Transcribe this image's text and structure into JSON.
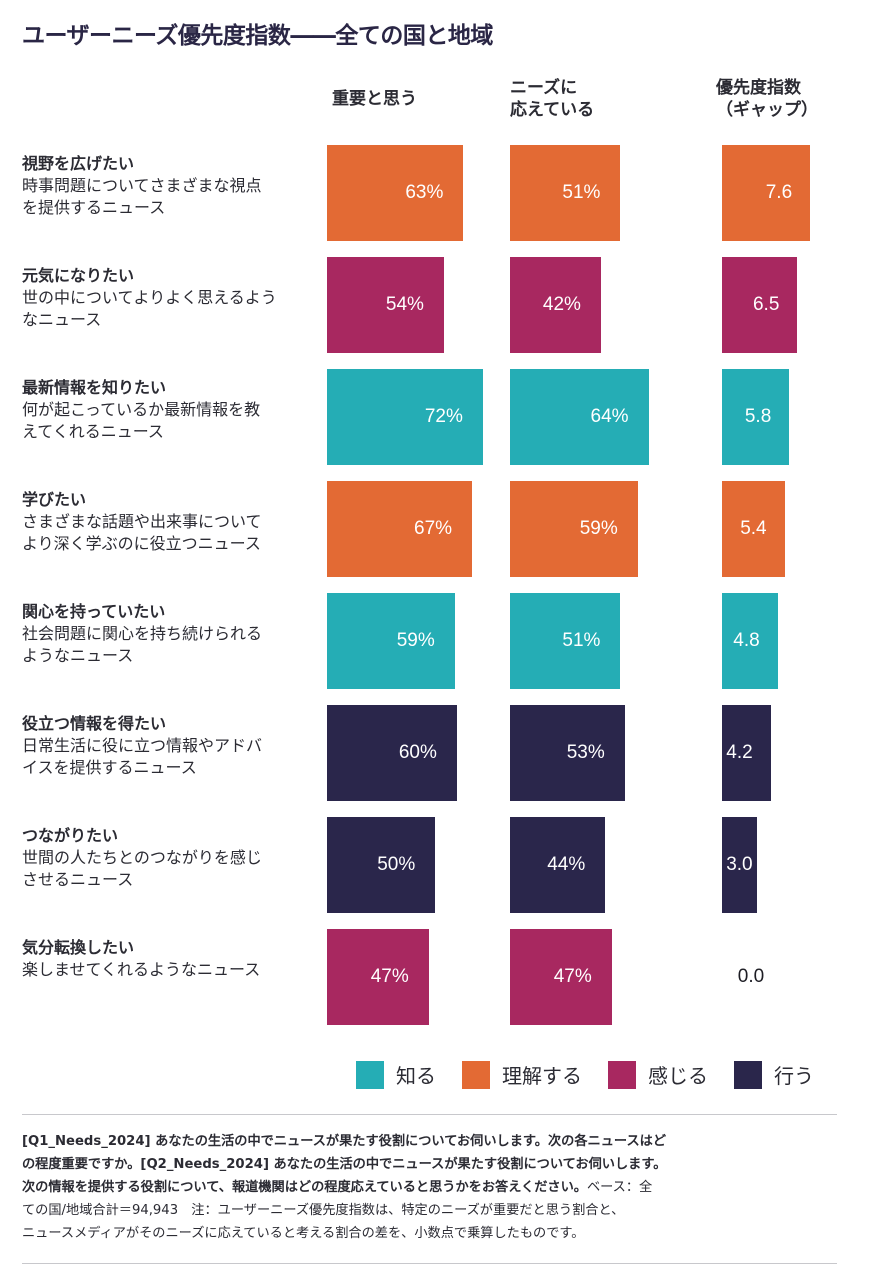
{
  "title": "ユーザーニーズ優先度指数――全ての国と地域",
  "columns": {
    "important": [
      "重要と思う"
    ],
    "met": [
      "ニーズに",
      "応えている"
    ],
    "gap": [
      "優先度指数",
      "（ギャップ）"
    ]
  },
  "colors": {
    "知る": "#25adb5",
    "理解する": "#e36a34",
    "感じる": "#a82860",
    "行う": "#2a264b"
  },
  "legend": [
    {
      "label": "知る",
      "color": "#25adb5"
    },
    {
      "label": "理解する",
      "color": "#e36a34"
    },
    {
      "label": "感じる",
      "color": "#a82860"
    },
    {
      "label": "行う",
      "color": "#2a264b"
    }
  ],
  "chart_data": {
    "type": "bar",
    "orientation": "horizontal",
    "title": "ユーザーニーズ優先度指数――全ての国と地域",
    "categories": [
      "視野を広げたい",
      "元気になりたい",
      "最新情報を知りたい",
      "学びたい",
      "関心を持っていたい",
      "役立つ情報を得たい",
      "つながりたい",
      "気分転換したい"
    ],
    "category_group": [
      "理解する",
      "感じる",
      "知る",
      "理解する",
      "知る",
      "行う",
      "行う",
      "感じる"
    ],
    "series": [
      {
        "name": "重要と思う",
        "unit": "%",
        "values": [
          63,
          54,
          72,
          67,
          59,
          60,
          50,
          47
        ],
        "labels": [
          "63%",
          "54%",
          "72%",
          "67%",
          "59%",
          "60%",
          "50%",
          "47%"
        ]
      },
      {
        "name": "ニーズに応えている",
        "unit": "%",
        "values": [
          51,
          42,
          64,
          59,
          51,
          53,
          44,
          47
        ],
        "labels": [
          "51%",
          "42%",
          "64%",
          "59%",
          "51%",
          "53%",
          "44%",
          "47%"
        ]
      },
      {
        "name": "優先度指数（ギャップ）",
        "unit": "",
        "values": [
          7.6,
          6.5,
          5.8,
          5.4,
          4.8,
          4.2,
          3.0,
          0.0
        ],
        "labels": [
          "7.6",
          "6.5",
          "5.8",
          "5.4",
          "4.8",
          "4.2",
          "3.0",
          "0.0"
        ]
      }
    ],
    "rows": [
      {
        "title": "視野を広げたい",
        "desc": [
          "時事問題についてさまざまな視点",
          "を提供するニュース"
        ]
      },
      {
        "title": "元気になりたい",
        "desc": [
          "世の中についてよりよく思えるよう",
          "なニュース"
        ]
      },
      {
        "title": "最新情報を知りたい",
        "desc": [
          "何が起こっているか最新情報を教",
          "えてくれるニュース"
        ]
      },
      {
        "title": "学びたい",
        "desc": [
          "さまざまな話題や出来事について",
          "より深く学ぶのに役立つニュース"
        ]
      },
      {
        "title": "関心を持っていたい",
        "desc": [
          "社会問題に関心を持ち続けられる",
          "ようなニュース"
        ]
      },
      {
        "title": "役立つ情報を得たい",
        "desc": [
          "日常生活に役に立つ情報やアドバ",
          "イスを提供するニュース"
        ]
      },
      {
        "title": "つながりたい",
        "desc": [
          "世間の人たちとのつながりを感じ",
          "させるニュース"
        ]
      },
      {
        "title": "気分転換したい",
        "desc": [
          "楽しませてくれるようなニュース"
        ]
      }
    ],
    "legend_position": "bottom-right",
    "grid": false
  },
  "footnote": {
    "bold_lines": [
      "[Q1_Needs_2024] あなたの生活の中でニュースが果たす役割についてお伺いします。次の各ニュースはど",
      "の程度重要ですか。[Q2_Needs_2024] あなたの生活の中でニュースが果たす役割についてお伺いします。",
      "次の情報を提供する役割について、報道機関はどの程度応えていると思うかをお答えください。"
    ],
    "line3_regular_tail": "ベース：全",
    "regular_lines": [
      "ての国/地域合計＝94,943　注：ユーザーニーズ優先度指数は、特定のニーズが重要だと思う割合と、",
      "ニュースメディアがそのニーズに応えていると考える割合の差を、小数点で乗算したものです。"
    ]
  }
}
